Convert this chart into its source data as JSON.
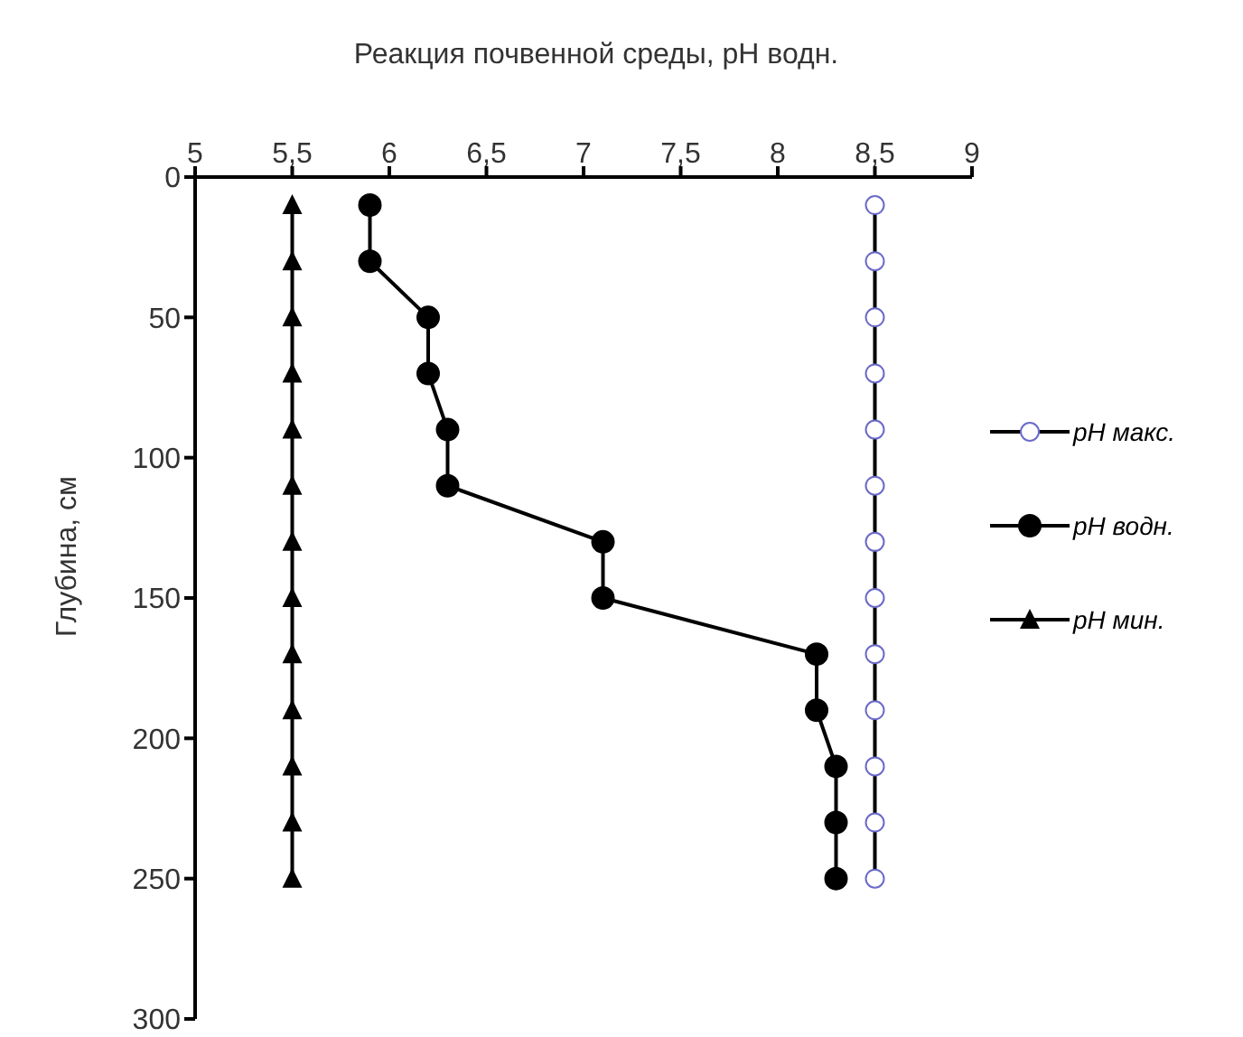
{
  "chart_data": {
    "type": "line",
    "orientation": "horizontal",
    "xlabel": "Реакция почвенной среды, pH водн.",
    "ylabel": "Глубина, см",
    "x": [
      10,
      30,
      50,
      70,
      90,
      110,
      130,
      150,
      170,
      190,
      210,
      230,
      250
    ],
    "series": [
      {
        "name": "pH макс.",
        "color": "#000000",
        "marker": "circle",
        "values": [
          8.5,
          8.5,
          8.5,
          8.5,
          8.5,
          8.5,
          8.5,
          8.5,
          8.5,
          8.5,
          8.5,
          8.5,
          8.5
        ]
      },
      {
        "name": "pH водн.",
        "color": "#000000",
        "marker": "circle",
        "values": [
          5.9,
          5.9,
          6.2,
          6.2,
          6.3,
          6.3,
          7.1,
          7.1,
          8.2,
          8.2,
          8.3,
          8.3,
          8.3
        ]
      },
      {
        "name": "pH мин.",
        "color": "#000000",
        "marker": "triangle",
        "values": [
          5.5,
          5.5,
          5.5,
          5.5,
          5.5,
          5.5,
          5.5,
          5.5,
          5.5,
          5.5,
          5.5,
          5.5,
          5.5
        ]
      }
    ],
    "xlim": [
      5,
      9
    ],
    "xticks": [
      5,
      {
        "value": 5.5,
        "label": "5,5"
      },
      6,
      {
        "value": 6.5,
        "label": "6,5"
      },
      7,
      {
        "value": 7.5,
        "label": "7,5"
      },
      8,
      {
        "value": 8.5,
        "label": "8,5"
      },
      9
    ],
    "ylim": [
      300,
      0
    ],
    "yticks": [
      0,
      50,
      100,
      150,
      200,
      250,
      300
    ],
    "grid": false,
    "legend": "right",
    "line_style": "solid"
  }
}
